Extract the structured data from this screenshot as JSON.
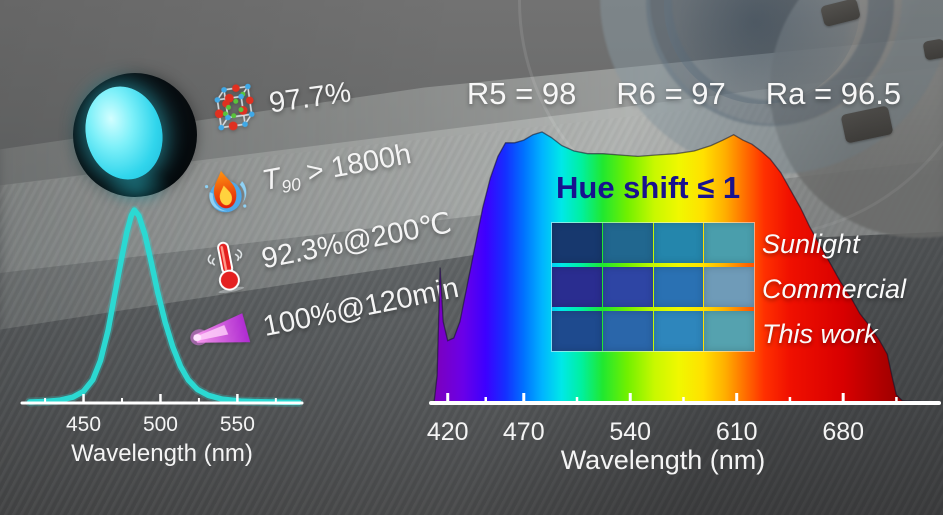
{
  "metrics": [
    {
      "icon": "crystal-structure-icon",
      "text": "97.7%"
    },
    {
      "icon": "flame-icon",
      "text_prefix": "T",
      "text_sub": "90",
      "text_rest": " > 1800h"
    },
    {
      "icon": "thermometer-icon",
      "text": "92.3%@200℃"
    },
    {
      "icon": "laser-beam-icon",
      "text": "100%@120min"
    }
  ],
  "cri_row": {
    "r5": "R5 = 98",
    "r6": "R6 = 97",
    "ra": "Ra = 96.5"
  },
  "hue_shift_label": "Hue shift ≤ 1",
  "swatch_panel": {
    "row_labels": [
      "Sunlight",
      "Commercial",
      "This work"
    ],
    "rows": [
      [
        "#17386E",
        "#21678F",
        "#2486AC",
        "#4A9EAC"
      ],
      [
        "#2A2D90",
        "#2E45A4",
        "#2A71B3",
        "#6F9BB8"
      ],
      [
        "#1E4A8E",
        "#2A66AA",
        "#2E86BC",
        "#55A2AF"
      ]
    ]
  },
  "chart_data": [
    {
      "id": "emission-spectrum",
      "type": "line",
      "title": "",
      "xlabel": "Wavelength (nm)",
      "ylabel": "",
      "x_ticks": [
        450,
        500,
        550
      ],
      "minor_ticks": [
        425,
        475,
        525,
        575
      ],
      "x_range": [
        410,
        592
      ],
      "ylim": [
        0,
        1.05
      ],
      "grid": false,
      "peak_nm": 482,
      "color": "#2BD9D2",
      "axis_color": "#FFFFFF",
      "tick_label_color": "#F4F4F4",
      "points": [
        [
          415,
          0.005
        ],
        [
          425,
          0.008
        ],
        [
          435,
          0.015
        ],
        [
          443,
          0.03
        ],
        [
          450,
          0.06
        ],
        [
          456,
          0.12
        ],
        [
          461,
          0.22
        ],
        [
          466,
          0.38
        ],
        [
          470,
          0.55
        ],
        [
          474,
          0.72
        ],
        [
          478,
          0.88
        ],
        [
          481,
          0.97
        ],
        [
          483,
          1.0
        ],
        [
          486,
          0.97
        ],
        [
          490,
          0.87
        ],
        [
          494,
          0.73
        ],
        [
          498,
          0.58
        ],
        [
          503,
          0.42
        ],
        [
          508,
          0.29
        ],
        [
          513,
          0.19
        ],
        [
          518,
          0.12
        ],
        [
          524,
          0.07
        ],
        [
          531,
          0.04
        ],
        [
          540,
          0.02
        ],
        [
          552,
          0.01
        ],
        [
          565,
          0.006
        ],
        [
          580,
          0.004
        ],
        [
          590,
          0.003
        ]
      ]
    },
    {
      "id": "white-light-spectrum",
      "type": "area",
      "title": "",
      "xlabel": "Wavelength (nm)",
      "ylabel": "",
      "x_ticks": [
        420,
        470,
        540,
        610,
        680
      ],
      "minor_ticks": [
        445,
        505,
        575,
        645,
        715
      ],
      "x_range": [
        409,
        743
      ],
      "ylim": [
        0,
        1.05
      ],
      "grid": false,
      "outline_color": "rgba(14,14,40,0.55)",
      "axis_color": "#FFFFFF",
      "tick_label_color": "#F4F4F4",
      "gradient": [
        [
          410,
          "#7E00B8"
        ],
        [
          430,
          "#6A00E8"
        ],
        [
          445,
          "#3C00FF"
        ],
        [
          458,
          "#1430FF"
        ],
        [
          470,
          "#0072FF"
        ],
        [
          482,
          "#00B4FF"
        ],
        [
          495,
          "#00E8E8"
        ],
        [
          508,
          "#00F0A0"
        ],
        [
          522,
          "#20E830"
        ],
        [
          538,
          "#70F000"
        ],
        [
          556,
          "#C8F800"
        ],
        [
          572,
          "#F0F800"
        ],
        [
          588,
          "#FFE000"
        ],
        [
          602,
          "#FFB000"
        ],
        [
          615,
          "#FF7000"
        ],
        [
          628,
          "#FF3000"
        ],
        [
          645,
          "#F01000"
        ],
        [
          680,
          "#D80000"
        ],
        [
          743,
          "#700000"
        ]
      ],
      "points": [
        [
          411,
          0
        ],
        [
          413,
          0.1
        ],
        [
          415,
          0.5
        ],
        [
          417,
          0.3
        ],
        [
          420,
          0.23
        ],
        [
          424,
          0.24
        ],
        [
          428,
          0.3
        ],
        [
          433,
          0.44
        ],
        [
          438,
          0.58
        ],
        [
          443,
          0.72
        ],
        [
          448,
          0.83
        ],
        [
          453,
          0.91
        ],
        [
          458,
          0.96
        ],
        [
          464,
          0.96
        ],
        [
          470,
          0.97
        ],
        [
          476,
          0.99
        ],
        [
          482,
          1.0
        ],
        [
          488,
          0.98
        ],
        [
          495,
          0.95
        ],
        [
          503,
          0.93
        ],
        [
          512,
          0.92
        ],
        [
          522,
          0.92
        ],
        [
          533,
          0.915
        ],
        [
          545,
          0.91
        ],
        [
          557,
          0.915
        ],
        [
          570,
          0.92
        ],
        [
          582,
          0.93
        ],
        [
          593,
          0.95
        ],
        [
          601,
          0.97
        ],
        [
          608,
          0.99
        ],
        [
          614,
          0.97
        ],
        [
          620,
          0.955
        ],
        [
          626,
          0.93
        ],
        [
          632,
          0.9
        ],
        [
          639,
          0.85
        ],
        [
          645,
          0.79
        ],
        [
          652,
          0.72
        ],
        [
          658,
          0.65
        ],
        [
          665,
          0.58
        ],
        [
          671,
          0.52
        ],
        [
          678,
          0.45
        ],
        [
          685,
          0.39
        ],
        [
          691,
          0.33
        ],
        [
          698,
          0.28
        ],
        [
          704,
          0.23
        ],
        [
          709,
          0.18
        ],
        [
          712,
          0.1
        ],
        [
          715,
          0.03
        ],
        [
          719,
          0.008
        ],
        [
          743,
          0.003
        ]
      ]
    }
  ]
}
